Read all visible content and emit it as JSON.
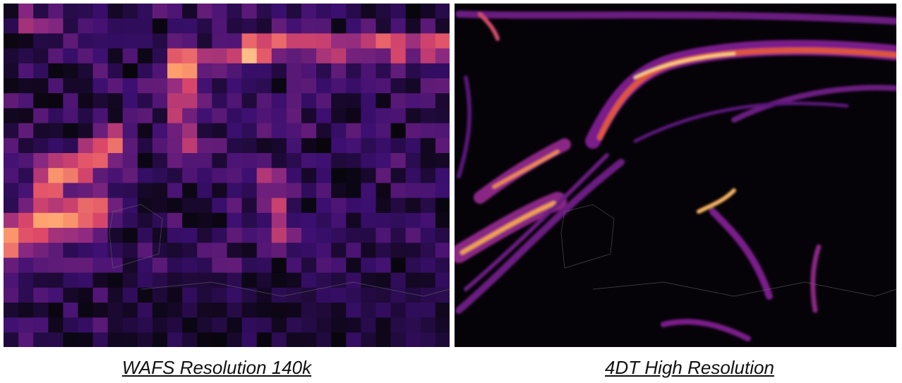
{
  "panels": [
    {
      "caption": "WAFS Resolution 140k"
    },
    {
      "caption": "4DT High Resolution"
    }
  ]
}
